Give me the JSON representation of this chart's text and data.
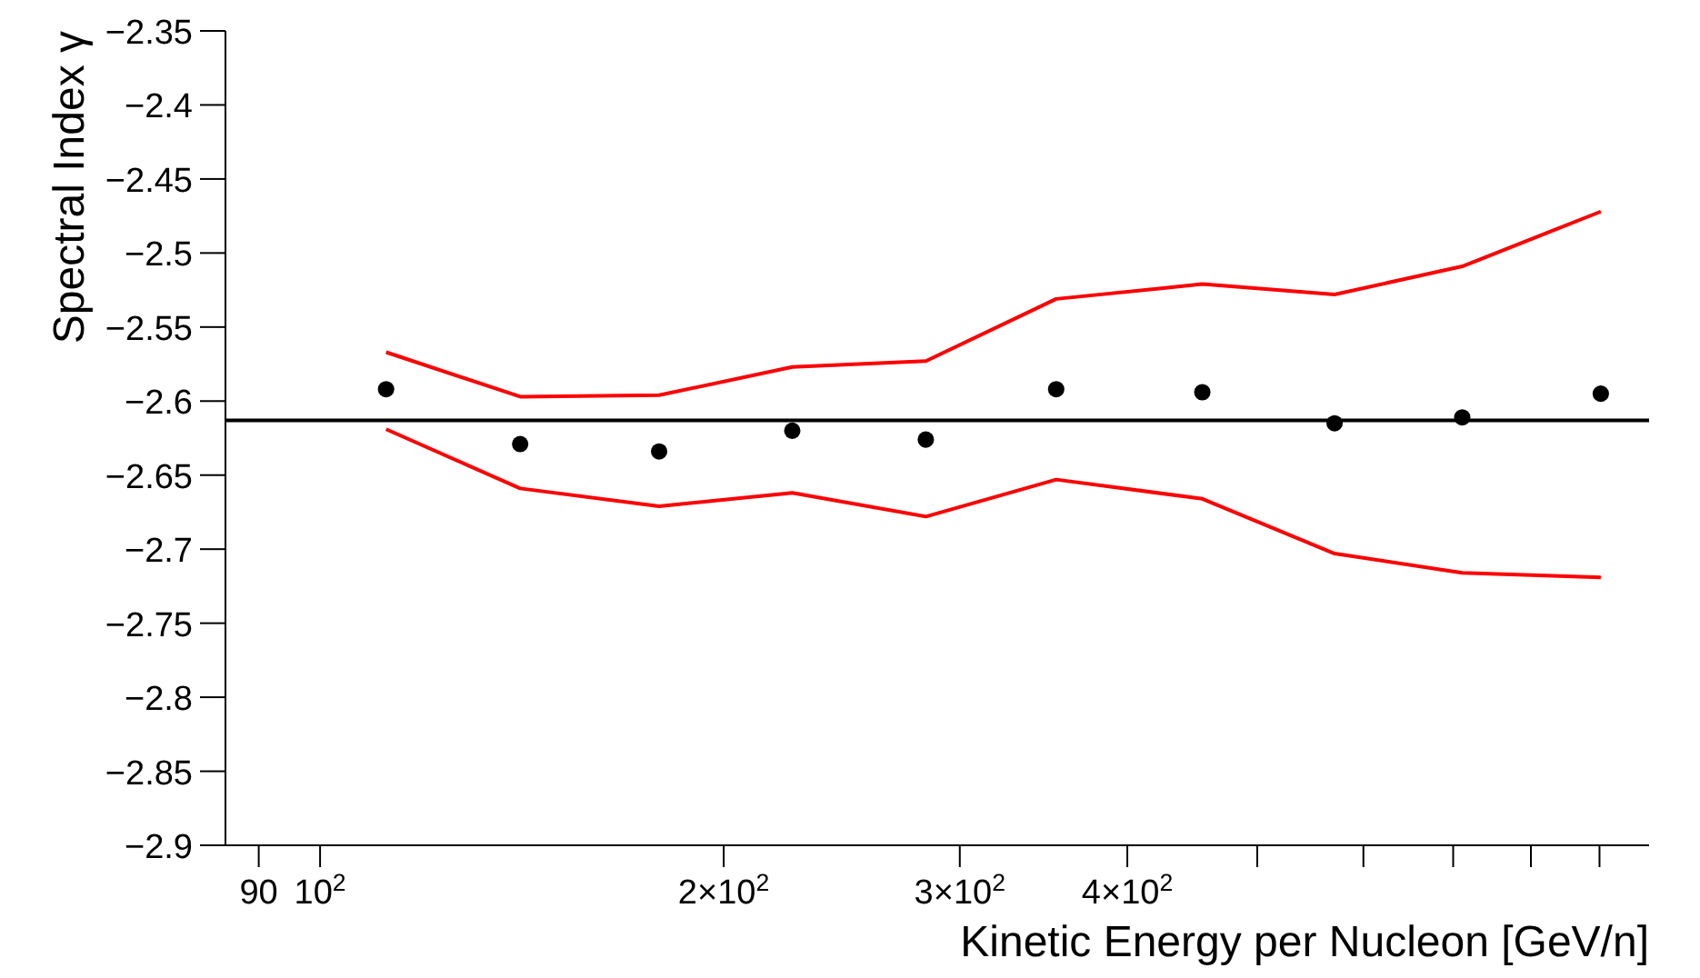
{
  "chart_data": {
    "type": "scatter",
    "xlabel": "Kinetic Energy per Nucleon [GeV/n]",
    "ylabel": "Spectral Index γ",
    "log": "x",
    "xlim": [
      85,
      980
    ],
    "xticks": [
      {
        "value": 90,
        "label": "90"
      },
      {
        "value": 100,
        "label": "10$^{2}$"
      },
      {
        "value": 200,
        "label": "2×10$^{2}$"
      },
      {
        "value": 300,
        "label": "3×10$^{2}$"
      },
      {
        "value": 400,
        "label": "4×10$^{2}$"
      },
      {
        "value": 500,
        "label": null
      },
      {
        "value": 600,
        "label": null
      },
      {
        "value": 700,
        "label": null
      },
      {
        "value": 800,
        "label": null
      },
      {
        "value": 900,
        "label": null
      }
    ],
    "ylim": [
      -2.9,
      -2.35
    ],
    "yticks": [
      -2.9,
      -2.85,
      -2.8,
      -2.75,
      -2.7,
      -2.65,
      -2.6,
      -2.55,
      -2.5,
      -2.45,
      -2.4,
      -2.35
    ],
    "x": [
      112,
      141,
      179,
      225,
      283,
      354,
      455,
      571,
      711,
      902
    ],
    "series": [
      {
        "marker": "circle",
        "color": "#000000",
        "values": [
          -2.592,
          -2.629,
          -2.634,
          -2.62,
          -2.626,
          -2.592,
          -2.594,
          -2.615,
          -2.611,
          -2.595
        ]
      },
      {
        "type": "line",
        "color": "#ff0000",
        "line_style": "solid",
        "marker": "none",
        "values": [
          -2.567,
          -2.597,
          -2.596,
          -2.577,
          -2.573,
          -2.531,
          -2.521,
          -2.528,
          -2.509,
          -2.472
        ]
      },
      {
        "type": "line",
        "color": "#ff0000",
        "line_style": "solid",
        "marker": "none",
        "values": [
          -2.619,
          -2.659,
          -2.671,
          -2.662,
          -2.678,
          -2.653,
          -2.666,
          -2.703,
          -2.716,
          -2.719
        ]
      }
    ],
    "ref_lines": [
      {
        "axis": "y",
        "value": -2.613,
        "label": null,
        "color": "#000000",
        "line_style": "solid"
      }
    ]
  }
}
